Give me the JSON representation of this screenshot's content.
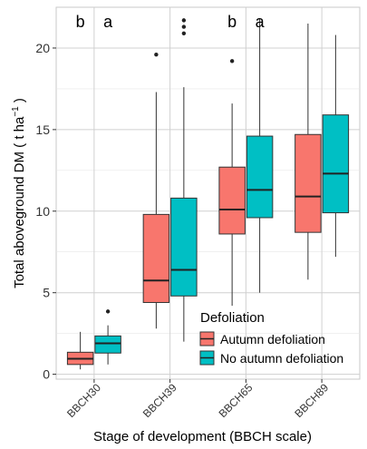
{
  "chart_data": {
    "type": "boxplot",
    "xlabel": "Stage of development (BBCH scale)",
    "ylabel_main": "Total aboveground DM ( t ha",
    "ylabel_sup": "−1",
    "ylabel_end": " )",
    "ylim": [
      -0.3,
      22.5
    ],
    "yticks": [
      0,
      5,
      10,
      15,
      20
    ],
    "categories": [
      "BBCH30",
      "BBCH39",
      "BBCH65",
      "BBCH89"
    ],
    "significance": [
      {
        "category": "BBCH30",
        "labels": [
          "b",
          "a"
        ]
      },
      {
        "category": "BBCH65",
        "labels": [
          "b",
          "a"
        ]
      }
    ],
    "legend": {
      "title": "Defoliation"
    },
    "series": [
      {
        "name": "Autumn defoliation",
        "color": "#F8766D",
        "boxes": [
          {
            "whisker_low": 0.3,
            "q1": 0.6,
            "median": 0.95,
            "q3": 1.35,
            "whisker_high": 2.6,
            "outliers": []
          },
          {
            "whisker_low": 2.8,
            "q1": 4.4,
            "median": 5.75,
            "q3": 9.8,
            "whisker_high": 17.3,
            "outliers": [
              19.6
            ]
          },
          {
            "whisker_low": 4.2,
            "q1": 8.6,
            "median": 10.1,
            "q3": 12.7,
            "whisker_high": 16.6,
            "outliers": [
              19.2
            ]
          },
          {
            "whisker_low": 5.8,
            "q1": 8.7,
            "median": 10.9,
            "q3": 14.7,
            "whisker_high": 21.5,
            "outliers": []
          }
        ]
      },
      {
        "name": "No autumn defoliation",
        "color": "#00BFC4",
        "boxes": [
          {
            "whisker_low": 0.6,
            "q1": 1.3,
            "median": 1.9,
            "q3": 2.35,
            "whisker_high": 3.0,
            "outliers": [
              3.85
            ]
          },
          {
            "whisker_low": 2.0,
            "q1": 4.8,
            "median": 6.4,
            "q3": 10.8,
            "whisker_high": 17.6,
            "outliers": [
              20.9,
              21.3,
              21.7
            ]
          },
          {
            "whisker_low": 5.0,
            "q1": 9.6,
            "median": 11.3,
            "q3": 14.6,
            "whisker_high": 21.8,
            "outliers": []
          },
          {
            "whisker_low": 7.2,
            "q1": 9.9,
            "median": 12.3,
            "q3": 15.9,
            "whisker_high": 20.8,
            "outliers": []
          }
        ]
      }
    ]
  }
}
